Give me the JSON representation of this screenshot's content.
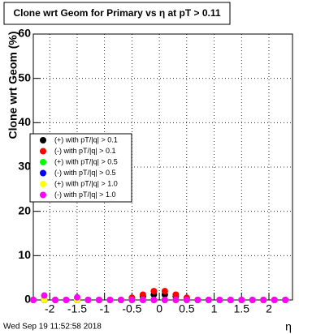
{
  "chart_data": {
    "type": "scatter",
    "title": "Clone wrt Geom for Primary vs   η at pT > 0.11",
    "y_label": "Clone wrt Geom (%)",
    "x_label": "η",
    "annotation": "Wed Sep 19 11:52:58 2018",
    "x": [
      -2.3,
      -2.1,
      -1.9,
      -1.7,
      -1.5,
      -1.3,
      -1.1,
      -0.9,
      -0.7,
      -0.5,
      -0.3,
      -0.1,
      0.1,
      0.3,
      0.5,
      0.7,
      0.9,
      1.1,
      1.3,
      1.5,
      1.7,
      1.9,
      2.1,
      2.3
    ],
    "series": [
      {
        "name": "(+) with pT/|q| > 0.1",
        "color": "#000000",
        "values": [
          0,
          0,
          0,
          0,
          0,
          0,
          0,
          0,
          0,
          0.3,
          0.8,
          1.2,
          1.2,
          0.8,
          0.3,
          0,
          0,
          0,
          0,
          0,
          0,
          0,
          0,
          0
        ]
      },
      {
        "name": "(-) with pT/|q| > 0.1",
        "color": "#ff0000",
        "values": [
          0,
          0,
          0,
          0,
          0,
          0,
          0,
          0,
          0,
          0.5,
          1.2,
          2,
          2,
          1.2,
          0.5,
          0,
          0,
          0,
          0,
          0,
          0,
          0,
          0,
          0
        ]
      },
      {
        "name": "(+) with pT/|q| > 0.5",
        "color": "#00ff00",
        "values": [
          0,
          0,
          0,
          0,
          0,
          0,
          0,
          0,
          0,
          0,
          0,
          0,
          0,
          0,
          0,
          0,
          0,
          0,
          0,
          0,
          0,
          0,
          0,
          0
        ]
      },
      {
        "name": "(-) with pT/|q| > 0.5",
        "color": "#0000ff",
        "values": [
          0,
          0,
          0,
          0,
          0,
          0,
          0,
          0,
          0,
          0,
          0,
          0,
          0,
          0,
          0,
          0,
          0,
          0,
          0,
          0,
          0,
          0,
          0,
          0
        ]
      },
      {
        "name": "(+) with pT/|q| > 1.0",
        "color": "#ffff00",
        "values": [
          0,
          0,
          0,
          0,
          0,
          0,
          0,
          0,
          0,
          0,
          0,
          0,
          0,
          0,
          0,
          0,
          0,
          0,
          0,
          0,
          0,
          0,
          0,
          0
        ]
      },
      {
        "name": "(-) with pT/|q| > 1.0",
        "color": "#ff00ff",
        "values": [
          0,
          1,
          0,
          0,
          0.6,
          0,
          0,
          0,
          0,
          0,
          0,
          0,
          0,
          0,
          0,
          0,
          0,
          0,
          0,
          0,
          0,
          0,
          0,
          0
        ]
      }
    ],
    "xlim": [
      -2.3,
      2.43
    ],
    "xticks": [
      -2,
      -1.5,
      -1,
      -0.5,
      0,
      0.5,
      1,
      1.5,
      2
    ],
    "ylim": [
      0,
      60
    ],
    "yticks": [
      0,
      10,
      20,
      30,
      40,
      50,
      60
    ],
    "grid": true,
    "legend": "left"
  }
}
